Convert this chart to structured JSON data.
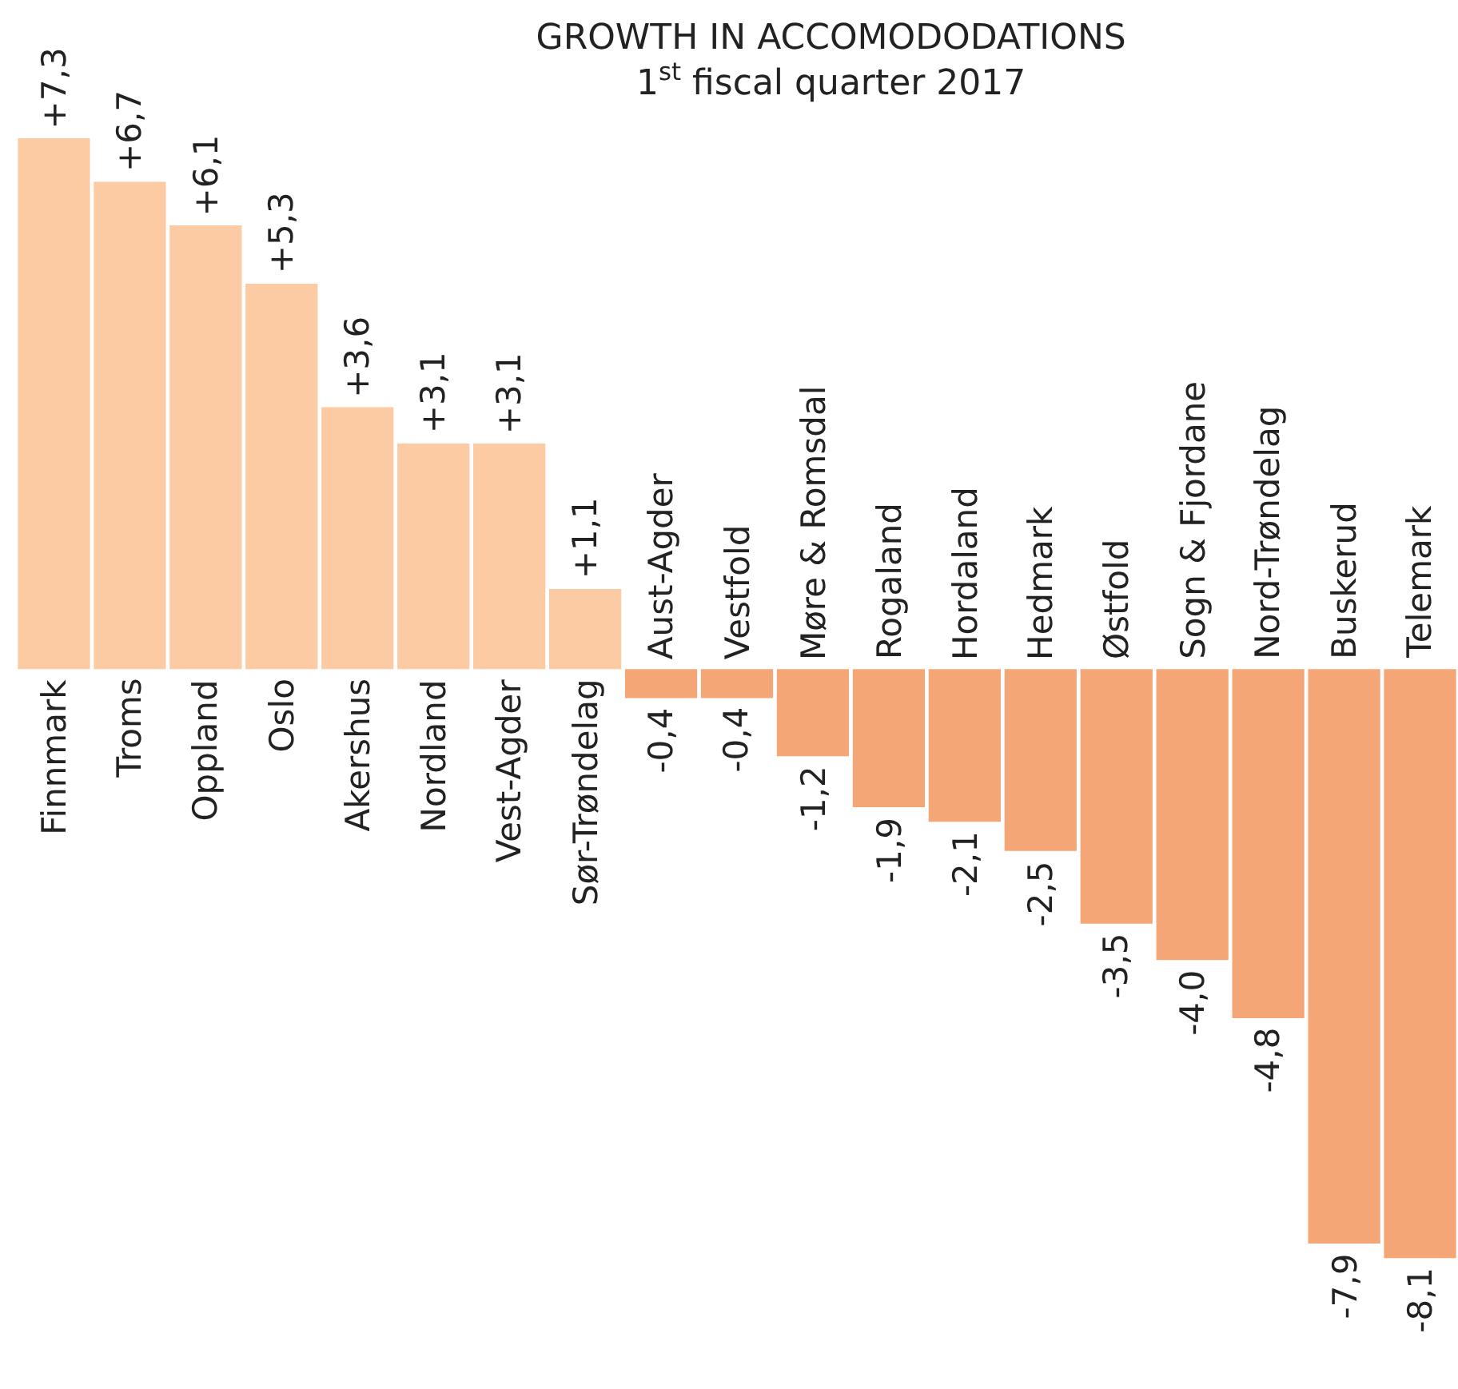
{
  "chart_data": {
    "type": "bar",
    "title": "GROWTH IN ACCOMODODATIONS",
    "subtitle": "1$^{st}$ fiscal quarter 2017",
    "categories": [
      "Finnmark",
      "Troms",
      "Oppland",
      "Oslo",
      "Akershus",
      "Nordland",
      "Vest-Agder",
      "Sør-Trøndelag",
      "Aust-Agder",
      "Vestfold",
      "Møre & Romsdal",
      "Rogaland",
      "Hordaland",
      "Hedmark",
      "Østfold",
      "Sogn & Fjordane",
      "Nord-Trøndelag",
      "Buskerud",
      "Telemark"
    ],
    "values": [
      7.3,
      6.7,
      6.1,
      5.3,
      3.6,
      3.1,
      3.1,
      1.1,
      -0.4,
      -0.4,
      -1.2,
      -1.9,
      -2.1,
      -2.5,
      -3.5,
      -4.0,
      -4.8,
      -7.9,
      -8.1
    ],
    "value_labels": [
      "+7,3",
      "+6,7",
      "+6,1",
      "+5,3",
      "+3,6",
      "+3,1",
      "+3,1",
      "+1,1",
      "-0,4",
      "-0,4",
      "-1,2",
      "-1,9",
      "-2,1",
      "-2,5",
      "-3,5",
      "-4,0",
      "-4,8",
      "-7,9",
      "-8,1"
    ],
    "colors": [
      "#fccaa3",
      "#fccaa3",
      "#fccaa3",
      "#fccaa3",
      "#fccaa3",
      "#fccaa3",
      "#fccaa3",
      "#fccaa3",
      "#f5a676",
      "#f5a676",
      "#f5a676",
      "#f5a676",
      "#f5a676",
      "#f5a676",
      "#f5a676",
      "#f5a676",
      "#f5a676",
      "#f5a676",
      "#f5a676"
    ],
    "ylim": [
      -9.9,
      9.2
    ]
  }
}
